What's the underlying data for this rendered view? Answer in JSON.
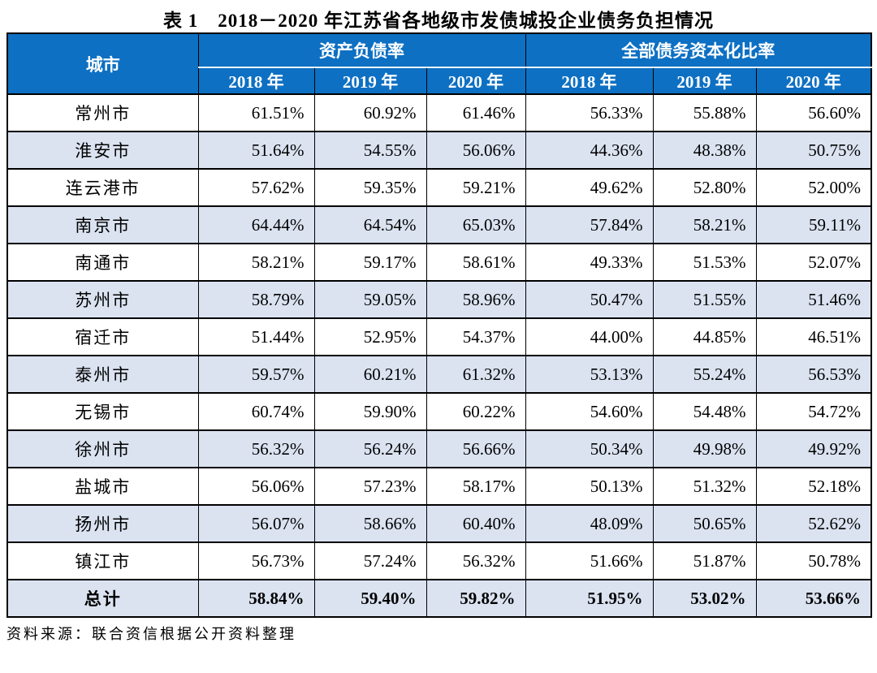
{
  "title": "表 1　2018－2020 年江苏省各地级市发债城投企业债务负担情况",
  "table": {
    "city_header": "城市",
    "groups": [
      {
        "label": "资产负债率",
        "years": [
          "2018 年",
          "2019 年",
          "2020 年"
        ]
      },
      {
        "label": "全部债务资本化比率",
        "years": [
          "2018 年",
          "2019 年",
          "2020 年"
        ]
      }
    ],
    "rows": [
      {
        "city": "常州市",
        "values": [
          "61.51%",
          "60.92%",
          "61.46%",
          "56.33%",
          "55.88%",
          "56.60%"
        ]
      },
      {
        "city": "淮安市",
        "values": [
          "51.64%",
          "54.55%",
          "56.06%",
          "44.36%",
          "48.38%",
          "50.75%"
        ]
      },
      {
        "city": "连云港市",
        "values": [
          "57.62%",
          "59.35%",
          "59.21%",
          "49.62%",
          "52.80%",
          "52.00%"
        ]
      },
      {
        "city": "南京市",
        "values": [
          "64.44%",
          "64.54%",
          "65.03%",
          "57.84%",
          "58.21%",
          "59.11%"
        ]
      },
      {
        "city": "南通市",
        "values": [
          "58.21%",
          "59.17%",
          "58.61%",
          "49.33%",
          "51.53%",
          "52.07%"
        ]
      },
      {
        "city": "苏州市",
        "values": [
          "58.79%",
          "59.05%",
          "58.96%",
          "50.47%",
          "51.55%",
          "51.46%"
        ]
      },
      {
        "city": "宿迁市",
        "values": [
          "51.44%",
          "52.95%",
          "54.37%",
          "44.00%",
          "44.85%",
          "46.51%"
        ]
      },
      {
        "city": "泰州市",
        "values": [
          "59.57%",
          "60.21%",
          "61.32%",
          "53.13%",
          "55.24%",
          "56.53%"
        ]
      },
      {
        "city": "无锡市",
        "values": [
          "60.74%",
          "59.90%",
          "60.22%",
          "54.60%",
          "54.48%",
          "54.72%"
        ]
      },
      {
        "city": "徐州市",
        "values": [
          "56.32%",
          "56.24%",
          "56.66%",
          "50.34%",
          "49.98%",
          "49.92%"
        ]
      },
      {
        "city": "盐城市",
        "values": [
          "56.06%",
          "57.23%",
          "58.17%",
          "50.13%",
          "51.32%",
          "52.18%"
        ]
      },
      {
        "city": "扬州市",
        "values": [
          "56.07%",
          "58.66%",
          "60.40%",
          "48.09%",
          "50.65%",
          "52.62%"
        ]
      },
      {
        "city": "镇江市",
        "values": [
          "56.73%",
          "57.24%",
          "56.32%",
          "51.66%",
          "51.87%",
          "50.78%"
        ]
      },
      {
        "city": "总计",
        "values": [
          "58.84%",
          "59.40%",
          "59.82%",
          "51.95%",
          "53.02%",
          "53.66%"
        ],
        "is_total": true
      }
    ]
  },
  "source": "资料来源：联合资信根据公开资料整理",
  "colors": {
    "header_bg": "#0d70c3",
    "header_text": "#ffffff",
    "row_alt_bg": "#dbe3f1",
    "border": "#000000",
    "header_inner_rule": "#f2f6fb"
  }
}
